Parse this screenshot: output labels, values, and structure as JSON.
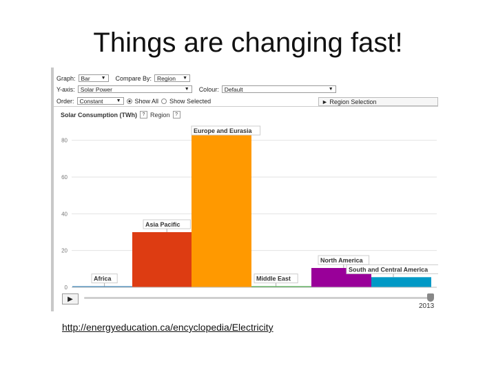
{
  "slide": {
    "title": "Things are changing fast!",
    "url": "http://energyeducation.ca/encyclopedia/Electricity"
  },
  "controls": {
    "graph_label": "Graph:",
    "graph_value": "Bar",
    "compare_label": "Compare By:",
    "compare_value": "Region",
    "yaxis_label": "Y-axis:",
    "yaxis_value": "Solar Power",
    "colour_label": "Colour:",
    "colour_value": "Default",
    "order_label": "Order:",
    "order_value": "Constant",
    "show_all_label": "Show All",
    "show_selected_label": "Show Selected",
    "show_all_selected": true,
    "region_selection_label": "► Region Selection"
  },
  "chart_header": {
    "title": "Solar Consumption (TWh)",
    "region_label": "Region",
    "help_glyph": "?"
  },
  "player": {
    "play_glyph": "▶",
    "year": "2013",
    "progress": 1.0
  },
  "icons": [
    "play-icon",
    "dropdown-arrow-icon",
    "help-icon"
  ],
  "chart_data": {
    "type": "bar",
    "title": "Solar Consumption (TWh)",
    "xlabel": "Region",
    "ylabel": "",
    "ylim": [
      0,
      90
    ],
    "yticks": [
      0,
      20,
      40,
      60,
      80
    ],
    "grid": true,
    "categories": [
      "Africa",
      "Asia Pacific",
      "Europe and Eurasia",
      "Middle East",
      "North America",
      "South and Central America"
    ],
    "values": [
      0.5,
      30,
      84,
      0.5,
      10.5,
      5.5
    ],
    "colors": [
      "#1f77b4",
      "#dd3c12",
      "#ff9900",
      "#2ca02c",
      "#990099",
      "#0099c6"
    ]
  }
}
